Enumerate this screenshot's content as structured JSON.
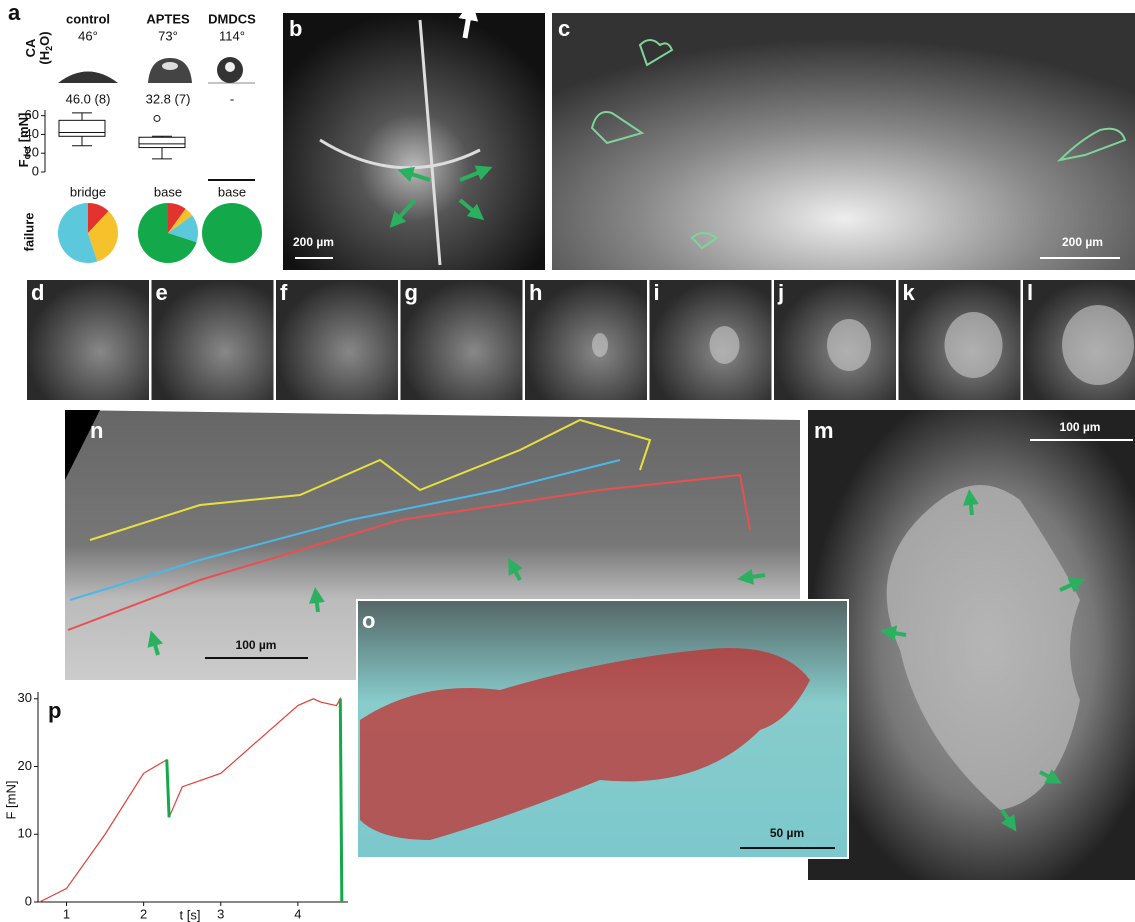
{
  "panel_a": {
    "letter": "a",
    "columns": [
      "control",
      "APTES",
      "DMDCS"
    ],
    "contact_angles": [
      "46°",
      "73°",
      "114°"
    ],
    "ca_label": [
      "CA",
      "(H",
      "2",
      "O)"
    ],
    "force_label": [
      "F",
      "det",
      " [mN]"
    ],
    "force_stats": [
      "46.0 (8)",
      "32.8 (7)",
      "-"
    ],
    "ylim": [
      0,
      66
    ],
    "yticks": [
      0,
      20,
      40,
      60
    ],
    "boxes": [
      {
        "whisker_low": 28,
        "q1": 38,
        "median": 42,
        "q3": 55,
        "whisker_high": 63,
        "outliers": []
      },
      {
        "whisker_low": 14,
        "q1": 26,
        "median": 30,
        "q3": 37,
        "whisker_high": 38,
        "outliers": [
          57
        ]
      }
    ],
    "failure_label": "failure",
    "failure_modes": [
      "bridge",
      "base",
      "base"
    ],
    "pies": [
      {
        "values": [
          12,
          33,
          55
        ],
        "colors": [
          "#e2332f",
          "#f6c22c",
          "#5bc8dc"
        ]
      },
      {
        "values": [
          10,
          5,
          15,
          70
        ],
        "colors": [
          "#e2332f",
          "#f6c22c",
          "#5bc8dc",
          "#13a84a"
        ]
      },
      {
        "values": [
          100
        ],
        "colors": [
          "#13a84a"
        ]
      }
    ]
  },
  "panels": {
    "b": "b",
    "c": "c",
    "d": "d",
    "e": "e",
    "f": "f",
    "g": "g",
    "h": "h",
    "i": "i",
    "j": "j",
    "k": "k",
    "l": "l",
    "n": "n",
    "m": "m",
    "o": "o",
    "p": "p"
  },
  "scale_bars": {
    "b": "200 µm",
    "c": "200 µm",
    "n": "100 µm",
    "m": "100 µm",
    "o": "50 µm"
  },
  "chart_data": {
    "type": "line",
    "xlabel": "t [s]",
    "ylabel": "F [mN]",
    "x": [
      0.65,
      1.0,
      1.5,
      2.0,
      2.3,
      2.33,
      2.5,
      3.0,
      3.5,
      4.0,
      4.2,
      4.3,
      4.5,
      4.55,
      4.57
    ],
    "series": [
      {
        "color": "#e0403a",
        "values": [
          0,
          2,
          10,
          19,
          21,
          12.5,
          17,
          19,
          24,
          29,
          30,
          29.5,
          29,
          30,
          0
        ]
      },
      {
        "color": "#13a84a",
        "values": [
          null,
          null,
          null,
          null,
          21,
          12.5,
          null,
          null,
          null,
          null,
          null,
          null,
          null,
          30,
          0
        ]
      }
    ],
    "xlim": [
      0.63,
      4.65
    ],
    "ylim": [
      0,
      31
    ],
    "xticks": [
      1,
      2,
      3,
      4
    ],
    "yticks": [
      0,
      10,
      20,
      30
    ]
  }
}
